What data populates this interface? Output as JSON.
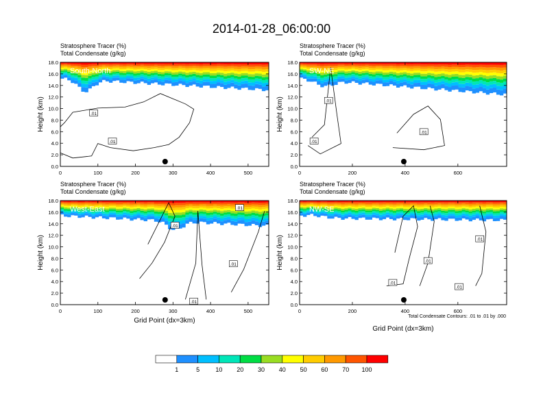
{
  "title": "2014-01-28_06:00:00",
  "colors": {
    "ramp": [
      "#ffffff",
      "#1e90ff",
      "#00bfff",
      "#00e6b8",
      "#00dd44",
      "#99dd22",
      "#ffff00",
      "#ffcc00",
      "#ff9900",
      "#ff5500",
      "#ff0000"
    ]
  },
  "colorbar": {
    "labels": [
      "1",
      "5",
      "10",
      "20",
      "30",
      "40",
      "50",
      "60",
      "70",
      "100"
    ]
  },
  "footnote": "Total Condensate Contours: .01 to .01 by .000",
  "chart_data": [
    {
      "type": "heatmap",
      "name": "South-North",
      "label1": "Stratosphere Tracer   (%)",
      "label2": "Total Condensate   (g/kg)",
      "xlabel": "",
      "ylabel": "Height (km)",
      "xlim": [
        0,
        555
      ],
      "ylim": [
        0,
        18
      ],
      "xticks": [
        "0",
        "100",
        "200",
        "300",
        "400",
        "500"
      ],
      "yticks": [
        "0.0",
        "2.0",
        "4.0",
        "6.0",
        "8.0",
        "10.0",
        "12.0",
        "14.0",
        "16.0",
        "18.0"
      ],
      "contour_labels": [
        ".01",
        ".01"
      ],
      "marker_x": 279
    },
    {
      "type": "heatmap",
      "name": "SW-NE",
      "label1": "Stratosphere Tracer   (%)",
      "label2": "Total Condensate   (g/kg)",
      "xlabel": "",
      "ylabel": "Height (km)",
      "xlim": [
        0,
        785
      ],
      "ylim": [
        0,
        18
      ],
      "xticks": [
        "0",
        "200",
        "400",
        "600"
      ],
      "yticks": [
        "0.0",
        "2.0",
        "4.0",
        "6.0",
        "8.0",
        "10.0",
        "12.0",
        "14.0",
        "16.0",
        "18.0"
      ],
      "contour_labels": [
        ".01",
        ".01",
        ".01"
      ],
      "marker_x": 395
    },
    {
      "type": "heatmap",
      "name": "West-East",
      "label1": "Stratosphere Tracer   (%)",
      "label2": "Total Condensate   (g/kg)",
      "xlabel": "Grid Point (dx=3km)",
      "ylabel": "Height (km)",
      "xlim": [
        0,
        555
      ],
      "ylim": [
        0,
        18
      ],
      "xticks": [
        "0",
        "100",
        "200",
        "300",
        "400",
        "500"
      ],
      "yticks": [
        "0.0",
        "2.0",
        "4.0",
        "6.0",
        "8.0",
        "10.0",
        "12.0",
        "14.0",
        "16.0",
        "18.0"
      ],
      "contour_labels": [
        ".01",
        ".01",
        ".01",
        ".01"
      ],
      "marker_x": 279
    },
    {
      "type": "heatmap",
      "name": "NW-SE",
      "label1": "Stratosphere Tracer   (%)",
      "label2": "Total Condensate   (g/kg)",
      "xlabel": "Grid Point (dx=3km)",
      "ylabel": "Height (km)",
      "xlim": [
        0,
        785
      ],
      "ylim": [
        0,
        18
      ],
      "xticks": [
        "0",
        "200",
        "400",
        "600"
      ],
      "yticks": [
        "0.0",
        "2.0",
        "4.0",
        "6.0",
        "8.0",
        "10.0",
        "12.0",
        "14.0",
        "16.0",
        "18.0"
      ],
      "contour_labels": [
        ".01",
        ".01",
        ".01",
        ".01"
      ],
      "marker_x": 395
    }
  ]
}
